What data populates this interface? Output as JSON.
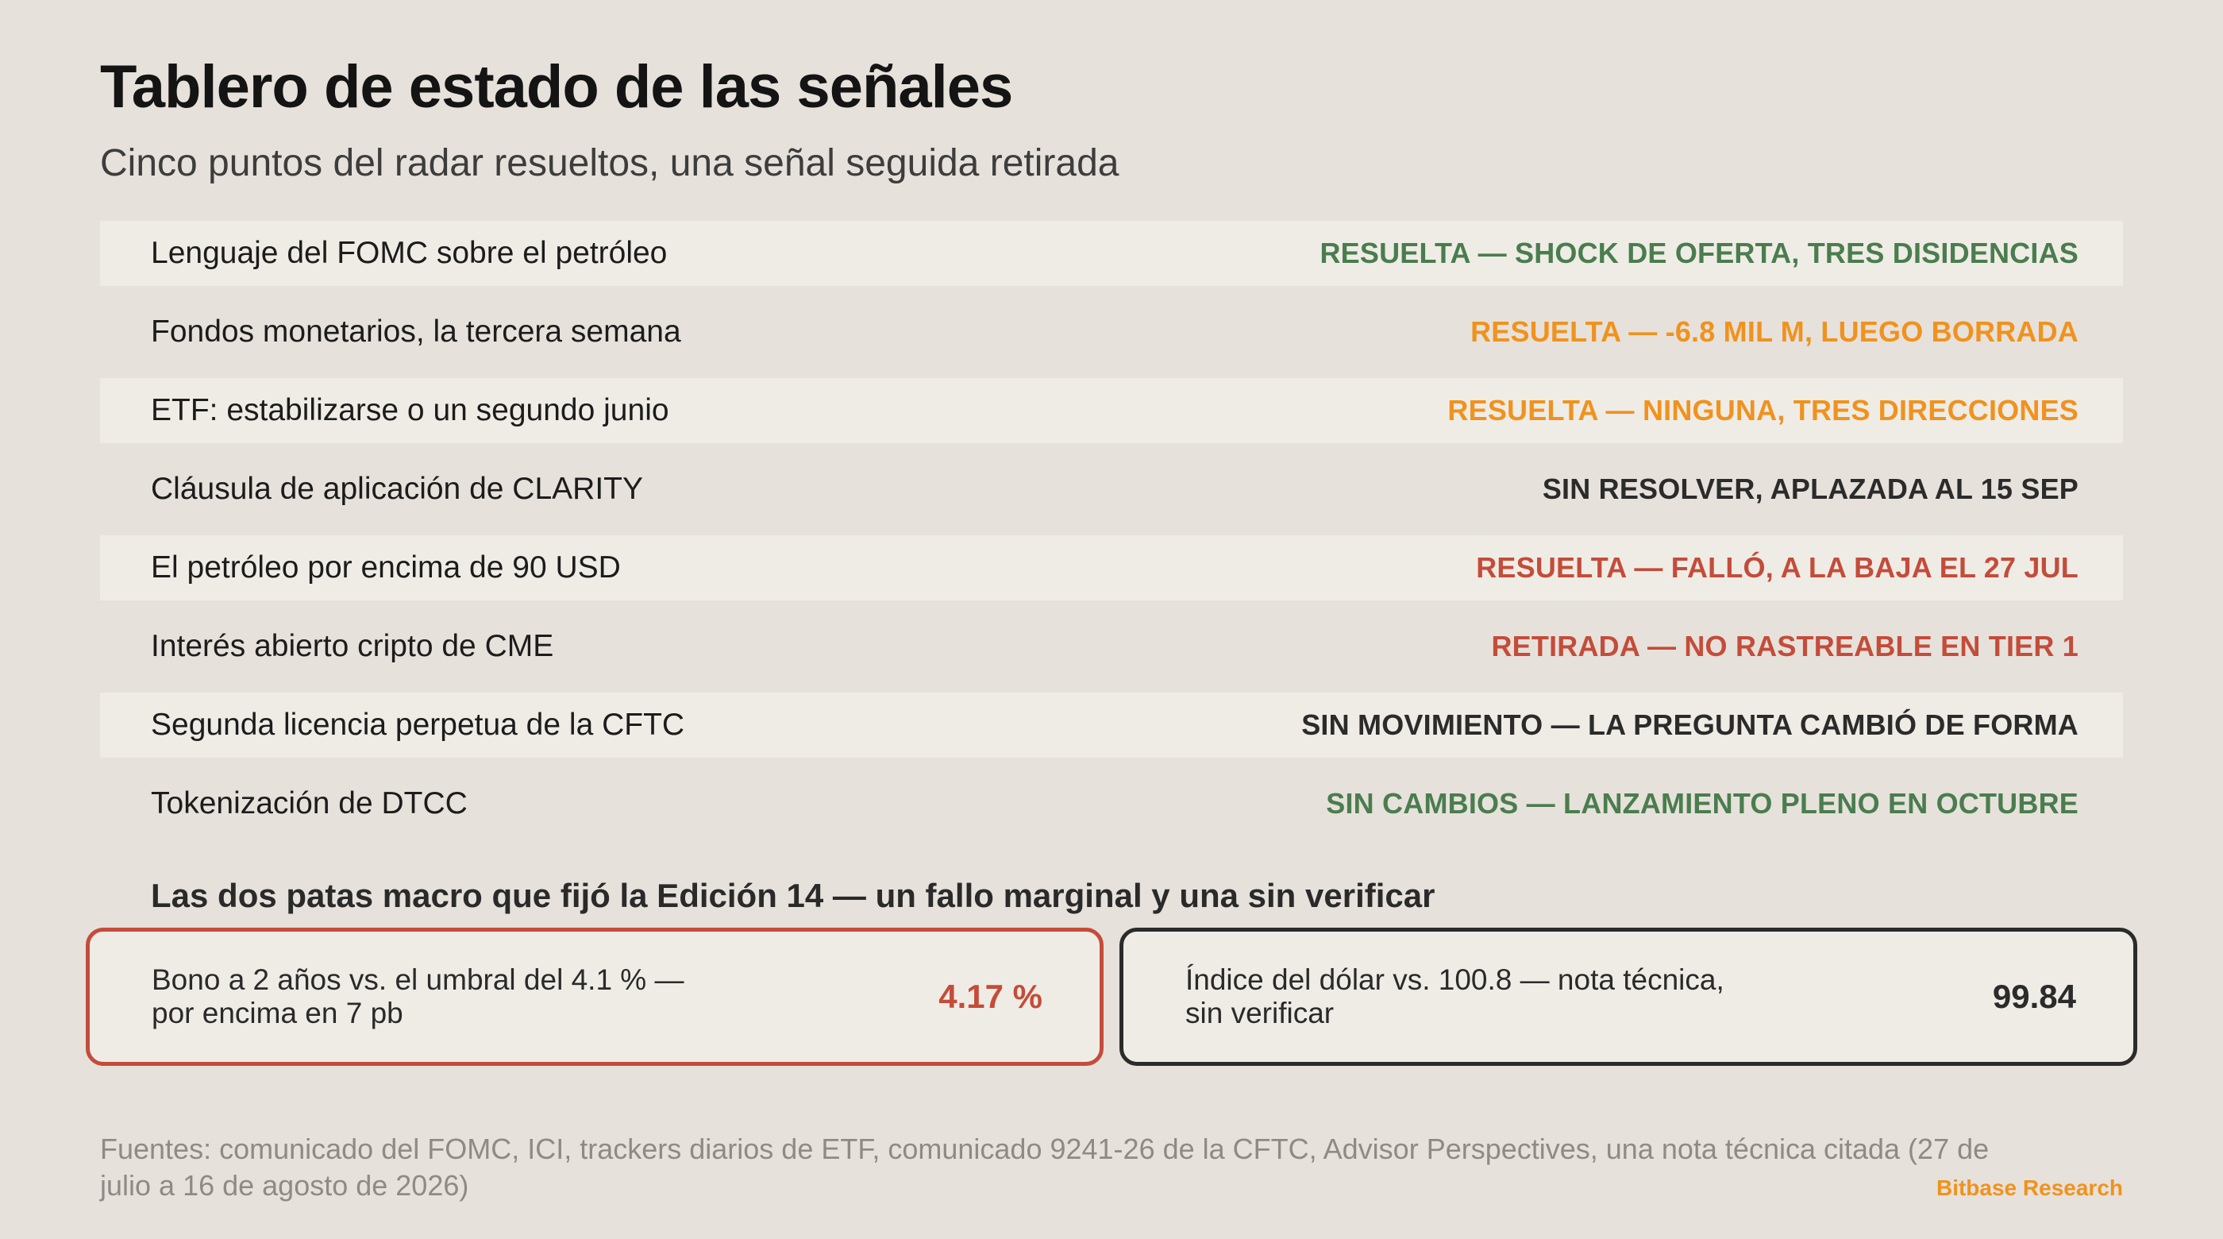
{
  "header": {
    "title": "Tablero de estado de las señales",
    "subtitle": "Cinco puntos del radar resueltos, una señal seguida retirada"
  },
  "colors": {
    "green": "#4a7d4e",
    "orange": "#f0921e",
    "red": "#c44c3a",
    "dark": "#2b2b2b"
  },
  "rows": [
    {
      "label": "Lenguaje del FOMC sobre el petróleo",
      "status": "RESUELTA — SHOCK DE OFERTA, TRES DISIDENCIAS",
      "status_color": "#4a7d4e"
    },
    {
      "label": "Fondos monetarios, la tercera semana",
      "status": "RESUELTA — -6.8 MIL M, LUEGO BORRADA",
      "status_color": "#f0921e"
    },
    {
      "label": "ETF: estabilizarse o un segundo junio",
      "status": "RESUELTA — NINGUNA, TRES DIRECCIONES",
      "status_color": "#f0921e"
    },
    {
      "label": "Cláusula de aplicación de CLARITY",
      "status": "SIN RESOLVER, APLAZADA AL 15 SEP",
      "status_color": "#2b2b2b"
    },
    {
      "label": "El petróleo por encima de 90 USD",
      "status": "RESUELTA — FALLÓ, A LA BAJA EL 27 JUL",
      "status_color": "#c44c3a"
    },
    {
      "label": "Interés abierto cripto de CME",
      "status": "RETIRADA — NO RASTREABLE EN TIER 1",
      "status_color": "#c44c3a"
    },
    {
      "label": "Segunda licencia perpetua de la CFTC",
      "status": "SIN MOVIMIENTO — LA PREGUNTA CAMBIÓ DE FORMA",
      "status_color": "#2b2b2b"
    },
    {
      "label": "Tokenización de DTCC",
      "status": "SIN CAMBIOS — LANZAMIENTO PLENO EN OCTUBRE",
      "status_color": "#4a7d4e"
    }
  ],
  "macro": {
    "title": "Las dos patas macro que fijó la Edición 14 — un fallo marginal y una sin verificar",
    "left": {
      "text": "Bono a 2 años vs. el umbral del 4.1 % — por encima en 7 pb",
      "value": "4.17 %",
      "value_color": "#c44c3a"
    },
    "right": {
      "text": "Índice del dólar vs. 100.8 — nota técnica, sin verificar",
      "value": "99.84",
      "value_color": "#2b2b2b"
    }
  },
  "footer": {
    "sources": "Fuentes: comunicado del FOMC, ICI, trackers diarios de ETF, comunicado 9241-26 de la CFTC, Advisor Perspectives, una nota técnica citada (27 de julio a 16 de agosto de 2026)",
    "brand": "Bitbase Research"
  }
}
